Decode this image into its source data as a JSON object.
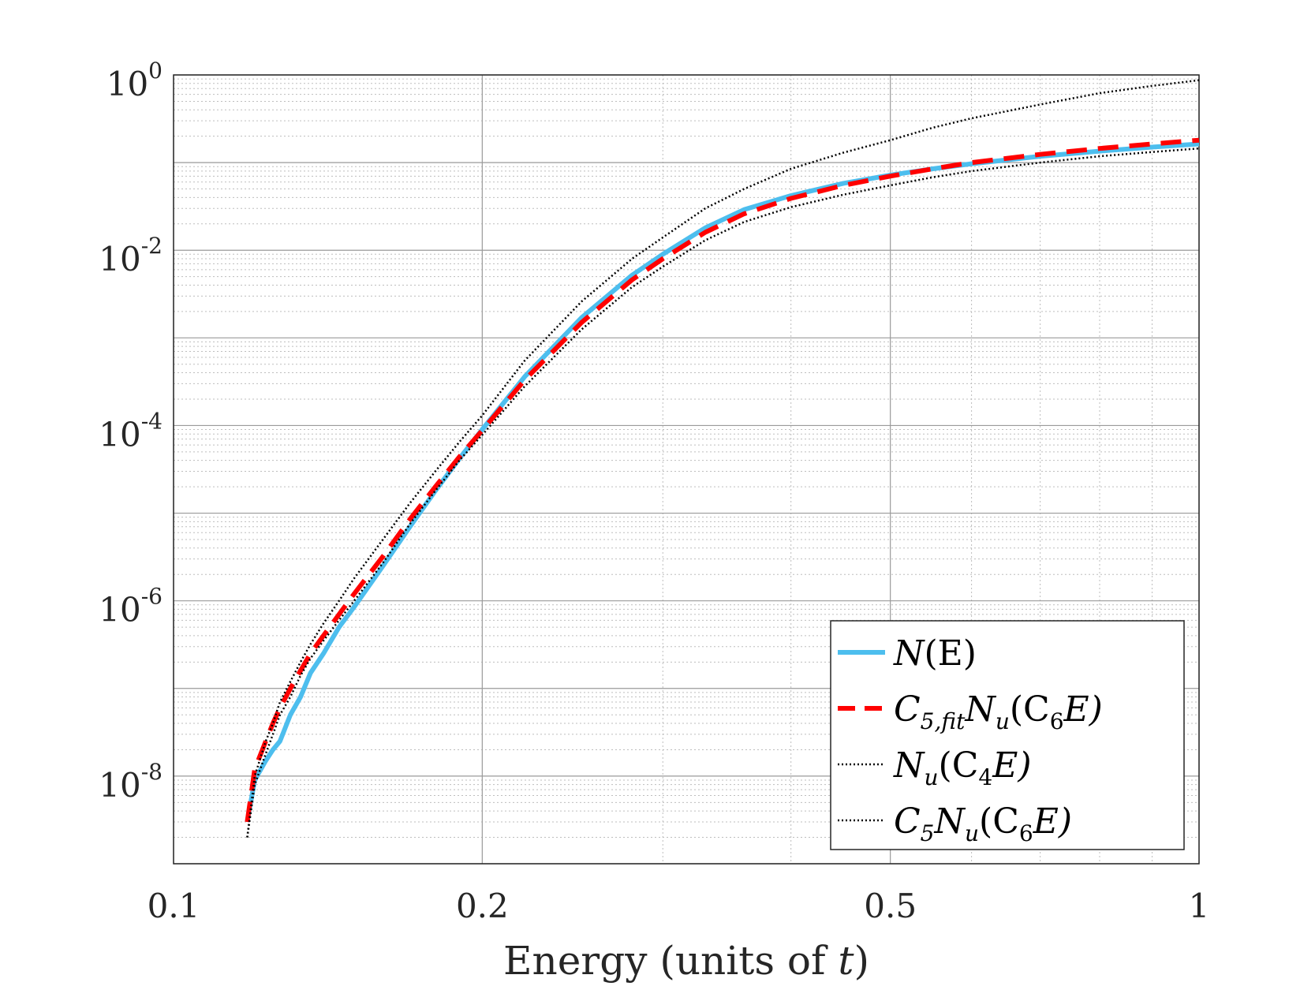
{
  "chart_data": {
    "type": "line",
    "title": "",
    "xlabel": "Energy (units of ",
    "xlabel_var": "t",
    "xlabel_close": ")",
    "ylabel": "",
    "xscale": "log",
    "yscale": "log",
    "xlim": [
      0.1,
      1
    ],
    "ylim": [
      1e-09,
      1
    ],
    "grid": true,
    "legend_position": "bottom-right",
    "x_ticks": [
      {
        "value": 0.1,
        "label": "0.1"
      },
      {
        "value": 0.2,
        "label": "0.2"
      },
      {
        "value": 0.5,
        "label": "0.5"
      },
      {
        "value": 1,
        "label": "1"
      }
    ],
    "y_ticks": [
      {
        "value": 1,
        "base": "10",
        "exp": "0"
      },
      {
        "value": 0.01,
        "base": "10",
        "exp": "-2"
      },
      {
        "value": 0.0001,
        "base": "10",
        "exp": "-4"
      },
      {
        "value": 1e-06,
        "base": "10",
        "exp": "-6"
      },
      {
        "value": 1e-08,
        "base": "10",
        "exp": "-8"
      }
    ],
    "series": [
      {
        "name": "N(E)",
        "color": "#4DBEEE",
        "style": "solid",
        "x": [
          0.118,
          0.12,
          0.123,
          0.125,
          0.127,
          0.13,
          0.133,
          0.136,
          0.14,
          0.145,
          0.15,
          0.16,
          0.17,
          0.18,
          0.19,
          0.2,
          0.22,
          0.25,
          0.28,
          0.3,
          0.33,
          0.36,
          0.4,
          0.45,
          0.5,
          0.55,
          0.6,
          0.7,
          0.8,
          0.9,
          1.0
        ],
        "values": [
          3e-09,
          9e-09,
          1.5e-08,
          2e-08,
          2.5e-08,
          5e-08,
          8e-08,
          1.5e-07,
          2.5e-07,
          5e-07,
          8.5e-07,
          2.5e-06,
          7e-06,
          1.8e-05,
          4.2e-05,
          9e-05,
          0.00036,
          0.0017,
          0.0052,
          0.009,
          0.018,
          0.029,
          0.042,
          0.058,
          0.072,
          0.085,
          0.097,
          0.118,
          0.135,
          0.15,
          0.163
        ]
      },
      {
        "name": "C_{5,fit}N_u(C_6E)",
        "color": "#FF0000",
        "style": "dashed",
        "x": [
          0.118,
          0.12,
          0.123,
          0.125,
          0.127,
          0.13,
          0.133,
          0.136,
          0.14,
          0.145,
          0.15,
          0.16,
          0.17,
          0.18,
          0.19,
          0.2,
          0.22,
          0.25,
          0.28,
          0.3,
          0.33,
          0.36,
          0.4,
          0.45,
          0.5,
          0.55,
          0.6,
          0.7,
          0.8,
          0.9,
          1.0
        ],
        "values": [
          3e-09,
          1.2e-08,
          2.5e-08,
          4e-08,
          6e-08,
          1e-07,
          1.6e-07,
          2.5e-07,
          4e-07,
          7e-07,
          1.2e-06,
          3.2e-06,
          8.5e-06,
          2e-05,
          4.4e-05,
          8.8e-05,
          0.00033,
          0.0015,
          0.0046,
          0.008,
          0.016,
          0.026,
          0.039,
          0.055,
          0.07,
          0.085,
          0.1,
          0.124,
          0.145,
          0.163,
          0.18
        ]
      },
      {
        "name": "N_u(C_4E)",
        "color": "#000000",
        "style": "dotted",
        "x": [
          0.118,
          0.12,
          0.123,
          0.125,
          0.127,
          0.13,
          0.133,
          0.136,
          0.14,
          0.145,
          0.15,
          0.16,
          0.17,
          0.18,
          0.19,
          0.2,
          0.22,
          0.25,
          0.28,
          0.3,
          0.33,
          0.36,
          0.4,
          0.45,
          0.5,
          0.55,
          0.6,
          0.7,
          0.8,
          0.9,
          1.0
        ],
        "values": [
          2e-09,
          1e-08,
          2.5e-08,
          4e-08,
          7e-08,
          1.2e-07,
          2e-07,
          3.2e-07,
          5.5e-07,
          1e-06,
          1.8e-06,
          5e-06,
          1.3e-05,
          3e-05,
          6.5e-05,
          0.00013,
          0.00055,
          0.0026,
          0.008,
          0.014,
          0.03,
          0.05,
          0.085,
          0.13,
          0.18,
          0.25,
          0.32,
          0.46,
          0.62,
          0.75,
          0.87
        ]
      },
      {
        "name": "C_5N_u(C_6E)",
        "color": "#000000",
        "style": "dotted",
        "x": [
          0.118,
          0.12,
          0.123,
          0.125,
          0.127,
          0.13,
          0.133,
          0.136,
          0.14,
          0.145,
          0.15,
          0.16,
          0.17,
          0.18,
          0.19,
          0.2,
          0.22,
          0.25,
          0.28,
          0.3,
          0.33,
          0.36,
          0.4,
          0.45,
          0.5,
          0.55,
          0.6,
          0.7,
          0.8,
          0.9,
          1.0
        ],
        "values": [
          2e-09,
          8e-09,
          1.8e-08,
          3e-08,
          5e-08,
          8e-08,
          1.4e-07,
          2.2e-07,
          3.5e-07,
          6e-07,
          1e-06,
          2.7e-06,
          7.5e-06,
          1.8e-05,
          4e-05,
          7.8e-05,
          0.00028,
          0.00125,
          0.0038,
          0.0065,
          0.013,
          0.021,
          0.031,
          0.043,
          0.055,
          0.068,
          0.08,
          0.1,
          0.118,
          0.132,
          0.145
        ]
      }
    ],
    "legend": [
      {
        "base": "N",
        "sub": "",
        "rest": "(E)"
      },
      {
        "base": "C",
        "sub": "5,fit",
        "mid": "N",
        "sub2": "u",
        "rest": "(C",
        "sub3": "6",
        "tail": "E)"
      },
      {
        "base": "N",
        "sub": "u",
        "rest": "(C",
        "sub2": "4",
        "tail": "E)"
      },
      {
        "base": "C",
        "sub": "5",
        "mid": "N",
        "sub2": "u",
        "rest": "(C",
        "sub3": "6",
        "tail": "E)"
      }
    ]
  }
}
